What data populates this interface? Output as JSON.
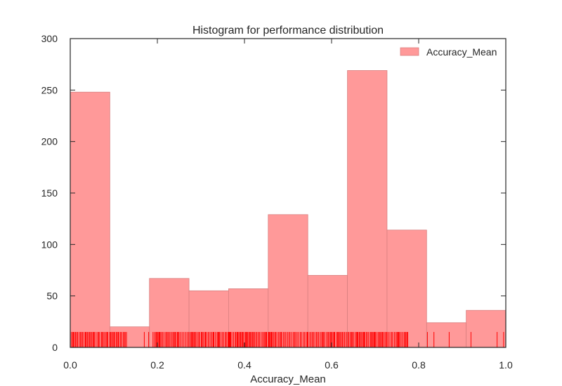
{
  "chart_data": {
    "type": "histogram",
    "title": "Histogram for performance distribution",
    "xlabel": "Accuracy_Mean",
    "ylabel": "",
    "xlim": [
      0.0,
      1.0
    ],
    "ylim": [
      0,
      300
    ],
    "xticks": [
      "0.0",
      "0.2",
      "0.4",
      "0.6",
      "0.8",
      "1.0"
    ],
    "yticks": [
      "0",
      "50",
      "100",
      "150",
      "200",
      "250",
      "300"
    ],
    "bin_edges": [
      0.0,
      0.0909,
      0.1818,
      0.2727,
      0.3636,
      0.4545,
      0.5455,
      0.6364,
      0.7273,
      0.8182,
      0.9091,
      1.0
    ],
    "series": [
      {
        "name": "Accuracy_Mean",
        "values": [
          248,
          20,
          67,
          55,
          57,
          129,
          70,
          269,
          114,
          24,
          36
        ]
      }
    ],
    "rug": {
      "ranges": [
        [
          0.0,
          0.13
        ],
        [
          0.19,
          0.775
        ]
      ],
      "isolated": [
        0.17,
        0.18,
        0.82,
        0.835,
        0.87,
        0.92,
        0.98,
        0.995
      ]
    },
    "legend": {
      "position": "top-right",
      "entries": [
        "Accuracy_Mean"
      ]
    },
    "grid": false,
    "colors": {
      "bar_fill": "#ff9999",
      "bar_stroke": "#d98080",
      "rug": "#ff0000",
      "axis": "#262626"
    }
  }
}
